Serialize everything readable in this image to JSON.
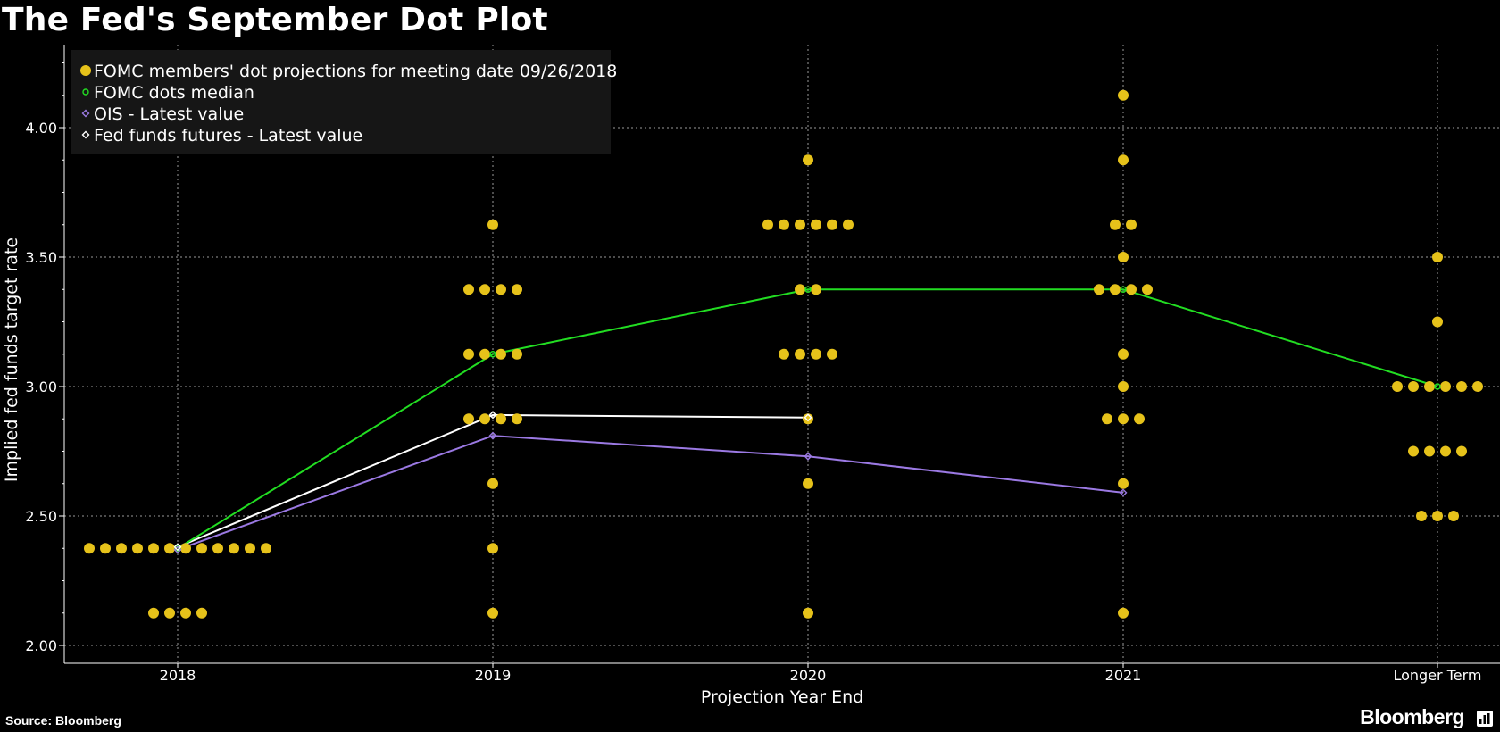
{
  "title": "The Fed's September Dot Plot",
  "source": "Source: Bloomberg",
  "brand": "Bloomberg",
  "colors": {
    "background": "#000000",
    "dots": "#e6c21a",
    "median": "#22dd22",
    "ois": "#9b79e3",
    "futures": "#ffffff",
    "grid": "#9a9a9a"
  },
  "chart_data": {
    "type": "scatter",
    "xlabel": "Projection Year End",
    "ylabel": "Implied fed funds target rate",
    "categories": [
      "2018",
      "2019",
      "2020",
      "2021",
      "Longer Term"
    ],
    "ylim": [
      1.97,
      4.3
    ],
    "yticks": [
      "2.00",
      "2.50",
      "3.00",
      "3.50",
      "4.00"
    ],
    "grid": true,
    "legend_position": "top-left",
    "dots": {
      "name": "FOMC members' dot projections for meeting date 09/26/2018",
      "points": [
        {
          "category": "2018",
          "rates": [
            2.375,
            2.375,
            2.375,
            2.375,
            2.375,
            2.375,
            2.375,
            2.375,
            2.375,
            2.375,
            2.375,
            2.375,
            2.125,
            2.125,
            2.125,
            2.125
          ]
        },
        {
          "category": "2019",
          "rates": [
            3.625,
            3.375,
            3.375,
            3.375,
            3.375,
            3.125,
            3.125,
            3.125,
            3.125,
            2.875,
            2.875,
            2.875,
            2.875,
            2.625,
            2.375,
            2.125
          ]
        },
        {
          "category": "2020",
          "rates": [
            3.875,
            3.625,
            3.625,
            3.625,
            3.625,
            3.625,
            3.625,
            3.375,
            3.375,
            3.125,
            3.125,
            3.125,
            3.125,
            2.875,
            2.625,
            2.125
          ]
        },
        {
          "category": "2021",
          "rates": [
            4.125,
            3.875,
            3.625,
            3.625,
            3.5,
            3.375,
            3.375,
            3.375,
            3.375,
            3.125,
            3.0,
            2.875,
            2.875,
            2.875,
            2.625,
            2.125
          ]
        },
        {
          "category": "Longer Term",
          "rates": [
            3.5,
            3.25,
            3.0,
            3.0,
            3.0,
            3.0,
            3.0,
            3.0,
            2.75,
            2.75,
            2.75,
            2.75,
            2.5,
            2.5,
            2.5
          ]
        }
      ]
    },
    "series": [
      {
        "name": "FOMC dots median",
        "x": [
          "2018",
          "2019",
          "2020",
          "2021",
          "Longer Term"
        ],
        "values": [
          2.375,
          3.125,
          3.375,
          3.375,
          3.0
        ]
      },
      {
        "name": "OIS - Latest value",
        "x": [
          "2018",
          "2019",
          "2020",
          "2021"
        ],
        "values": [
          2.37,
          2.81,
          2.73,
          2.59
        ]
      },
      {
        "name": "Fed funds futures - Latest value",
        "x": [
          "2018",
          "2019",
          "2020"
        ],
        "values": [
          2.38,
          2.89,
          2.88
        ]
      }
    ]
  }
}
